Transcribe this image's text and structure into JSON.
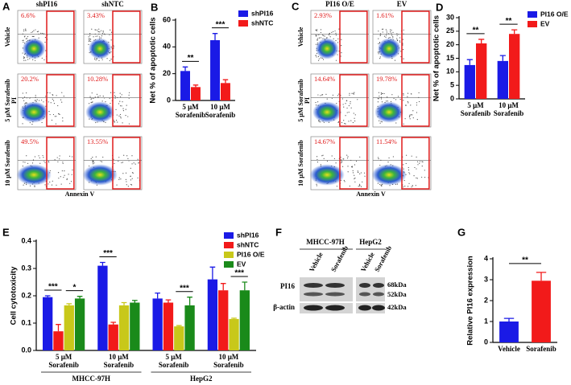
{
  "panels": {
    "A": {
      "letter": "A",
      "columns": [
        "shPI16",
        "shNTC"
      ],
      "rows": [
        "Vehicle",
        "5 μM Sorafenib",
        "10 μM Sorafenib"
      ],
      "percentages": [
        [
          "6.6%",
          "3.43%"
        ],
        [
          "20.2%",
          "10.28%"
        ],
        [
          "49.5%",
          "13.55%"
        ]
      ],
      "y_label": "PI",
      "x_label": "Annexin V"
    },
    "C": {
      "letter": "C",
      "columns": [
        "PI16 O/E",
        "EV"
      ],
      "rows": [
        "Vehicle",
        "5 μM Sorafenib",
        "10 μM Sorafenib"
      ],
      "percentages": [
        [
          "2.93%",
          "1.61%"
        ],
        [
          "14.64%",
          "19.78%"
        ],
        [
          "14.67%",
          "11.54%"
        ]
      ],
      "y_label": "PI",
      "x_label": "Annexin V"
    },
    "F": {
      "letter": "F",
      "cell_lines": [
        "MHCC-97H",
        "HepG2"
      ],
      "lanes": [
        [
          "Vehicle",
          "Sorafenib"
        ],
        [
          "Vehicle",
          "Sorafenib"
        ]
      ],
      "proteins": [
        "PI16",
        "β-actin"
      ],
      "sizes": [
        "68kDa",
        "52kDa",
        "42kDa"
      ]
    }
  },
  "chart_data": [
    {
      "letter": "B",
      "type": "bar",
      "y_label": "Net % of apoptotic cells",
      "categories": [
        [
          "5 μM",
          "Sorafenib"
        ],
        [
          "10 μM",
          "Sorafenib"
        ]
      ],
      "series": [
        {
          "name": "shPI16",
          "color": "#1a1ae6",
          "values": [
            22,
            45
          ],
          "errors": [
            3,
            5
          ]
        },
        {
          "name": "shNTC",
          "color": "#f21a1a",
          "values": [
            10,
            13
          ],
          "errors": [
            1.5,
            2.5
          ]
        }
      ],
      "ylim": [
        0,
        60
      ],
      "yticks": [
        0,
        20,
        40,
        60
      ],
      "significance": [
        [
          "**"
        ],
        [
          "***"
        ]
      ]
    },
    {
      "letter": "D",
      "type": "bar",
      "y_label": "Net % of apoptotic cells",
      "categories": [
        [
          "5 μM",
          "Sorafenib"
        ],
        [
          "10 μM",
          "Sorafenib"
        ]
      ],
      "series": [
        {
          "name": "PI16 O/E",
          "color": "#1a1ae6",
          "values": [
            12.5,
            14
          ],
          "errors": [
            2,
            2
          ]
        },
        {
          "name": "EV",
          "color": "#f21a1a",
          "values": [
            20.5,
            24
          ],
          "errors": [
            1.5,
            1.5
          ]
        }
      ],
      "ylim": [
        0,
        30
      ],
      "yticks": [
        0,
        5,
        10,
        15,
        20,
        25,
        30
      ],
      "significance": [
        [
          "**"
        ],
        [
          "**"
        ]
      ]
    },
    {
      "letter": "E",
      "type": "bar",
      "y_label": "Cell cytotoxicity",
      "categories": [
        [
          "5 μM",
          "Sorafenib"
        ],
        [
          "10 μM",
          "Sorafenib"
        ],
        [
          "5 μM",
          "Sorafenib"
        ],
        [
          "10 μM",
          "Sorafenib"
        ]
      ],
      "groups": [
        "MHCC-97H",
        "HepG2"
      ],
      "series": [
        {
          "name": "shPI16",
          "color": "#1a1ae6",
          "values": [
            0.195,
            0.31,
            0.19,
            0.26
          ],
          "errors": [
            0.005,
            0.012,
            0.02,
            0.045
          ]
        },
        {
          "name": "shNTC",
          "color": "#f21a1a",
          "values": [
            0.07,
            0.095,
            0.175,
            0.22
          ],
          "errors": [
            0.025,
            0.008,
            0.01,
            0.025
          ]
        },
        {
          "name": "PI16 O/E",
          "color": "#c8c81a",
          "values": [
            0.165,
            0.165,
            0.088,
            0.115
          ],
          "errors": [
            0.006,
            0.01,
            0.003,
            0.003
          ]
        },
        {
          "name": "EV",
          "color": "#1a8a1a",
          "values": [
            0.19,
            0.175,
            0.165,
            0.22
          ],
          "errors": [
            0.008,
            0.008,
            0.03,
            0.03
          ]
        }
      ],
      "ylim": [
        0,
        0.4
      ],
      "yticks": [
        {
          "value": 0,
          "label": "0.0"
        },
        0.1,
        0.2,
        0.3,
        0.4
      ],
      "significance": [
        [
          "***",
          "*"
        ],
        [
          "***"
        ],
        [
          "***"
        ],
        [
          "***"
        ]
      ]
    },
    {
      "letter": "G",
      "type": "bar",
      "y_label": "Relative PI16 expression",
      "categories": [
        [
          "Vehicle"
        ],
        [
          "Sorafenib"
        ]
      ],
      "values": [
        1.0,
        2.95
      ],
      "errors": [
        0.15,
        0.4
      ],
      "colors": [
        "#1a1ae6",
        "#f21a1a"
      ],
      "ylim": [
        0,
        4
      ],
      "yticks": [
        0,
        1,
        2,
        3,
        4
      ],
      "significance": "**"
    }
  ]
}
